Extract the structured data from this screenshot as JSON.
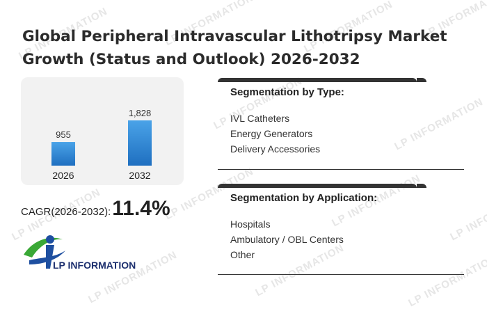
{
  "title": "Global Peripheral Intravascular Lithotripsy Market Growth (Status and Outlook) 2026-2032",
  "watermark_text": "LP INFORMATION",
  "chart_data": {
    "type": "bar",
    "categories": [
      "2026",
      "2032"
    ],
    "values": [
      955,
      1828
    ],
    "value_labels": [
      "955",
      "1,828"
    ],
    "title": "",
    "xlabel": "",
    "ylabel": "",
    "ylim": [
      0,
      2000
    ],
    "grid": false,
    "bar_color_top": "#4aa3e8",
    "bar_color_bottom": "#1f6fc0"
  },
  "cagr": {
    "label": "CAGR(2026-2032):",
    "value": "11.4%"
  },
  "logo": {
    "text": "LP INFORMATION",
    "colors": {
      "green": "#3aa836",
      "blue": "#1e4fa0",
      "text": "#1c2f6e"
    }
  },
  "segmentation_type": {
    "title": "Segmentation by Type:",
    "items": [
      "IVL Catheters",
      "Energy Generators",
      "Delivery Accessories"
    ]
  },
  "segmentation_application": {
    "title": "Segmentation by Application:",
    "items": [
      "Hospitals",
      "Ambulatory / OBL Centers",
      "Other"
    ]
  }
}
